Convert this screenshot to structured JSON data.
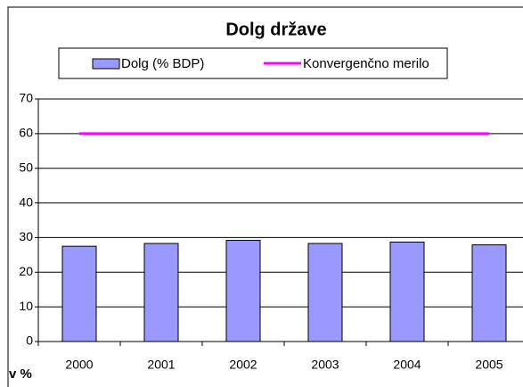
{
  "chart_data": {
    "type": "bar",
    "title": "Dolg države",
    "y_label": "v %",
    "categories": [
      "2000",
      "2001",
      "2002",
      "2003",
      "2004",
      "2005"
    ],
    "series": [
      {
        "name": "Dolg (% BDP)",
        "type": "bar",
        "color": "#9999ff",
        "values": [
          27.5,
          28.3,
          29.2,
          28.3,
          28.7,
          27.9
        ]
      },
      {
        "name": "Konvergenčno merilo",
        "type": "line",
        "color": "#ff00ff",
        "values": [
          60,
          60,
          60,
          60,
          60,
          60
        ]
      }
    ],
    "ylim": [
      0,
      70
    ],
    "yticks": [
      0,
      10,
      20,
      30,
      40,
      50,
      60,
      70
    ],
    "grid": true,
    "legend": "top"
  }
}
